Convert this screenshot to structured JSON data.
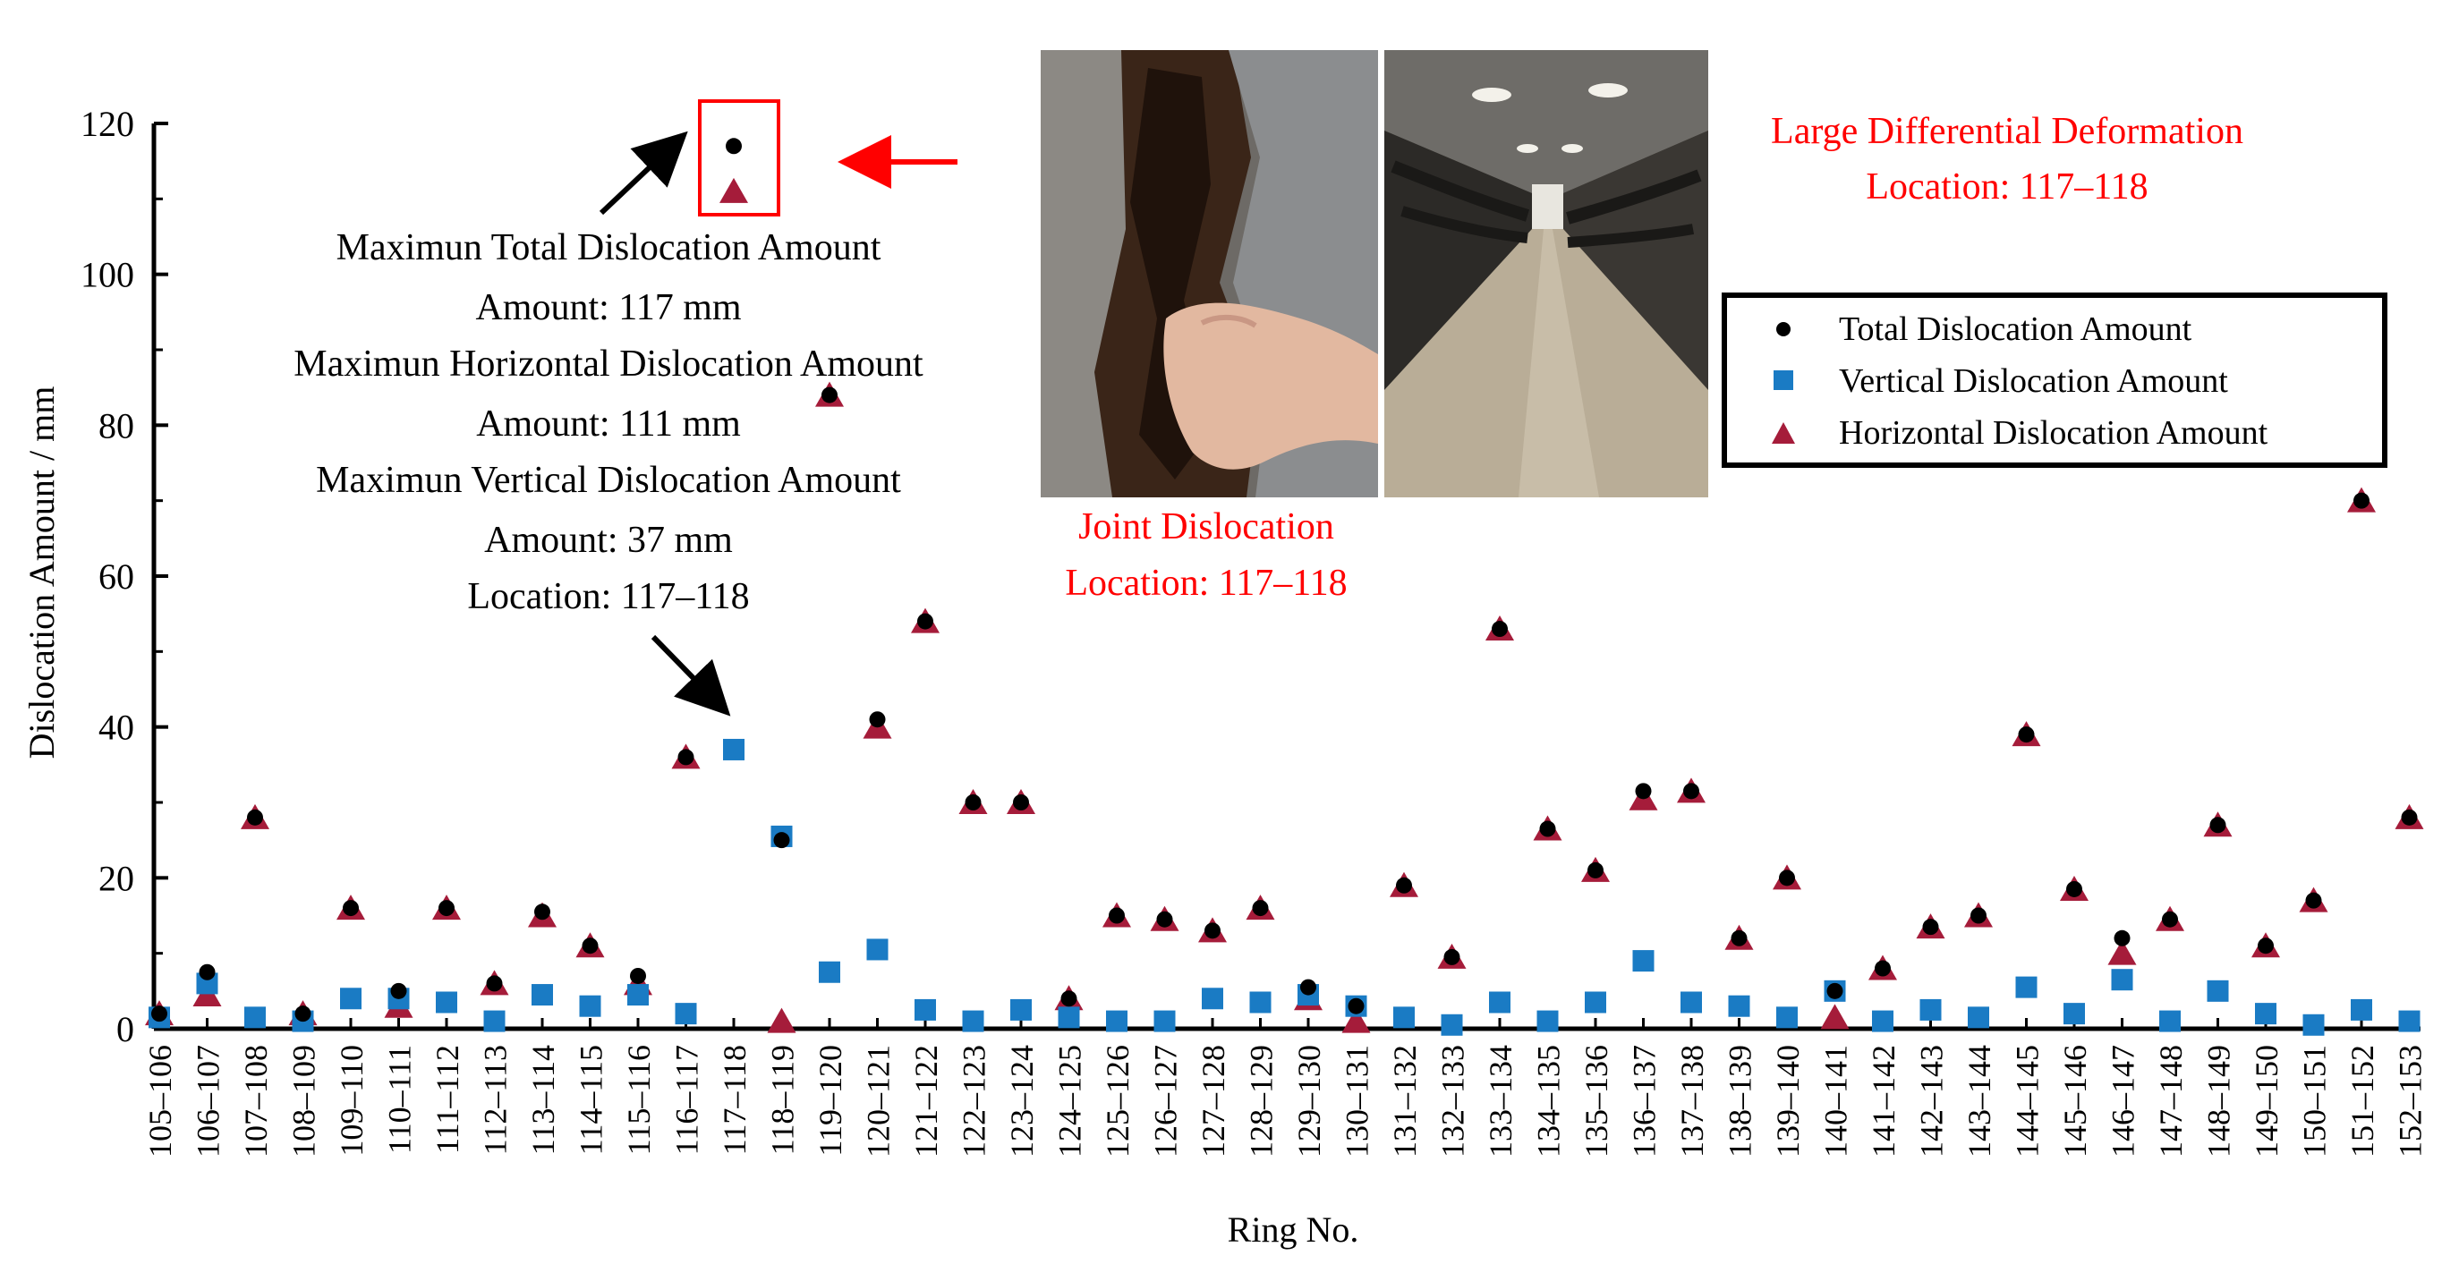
{
  "chart_data": {
    "type": "scatter",
    "xlabel": "Ring No.",
    "ylabel": "Dislocation Amount / mm",
    "ylim": [
      0,
      120
    ],
    "yticks": [
      0,
      20,
      40,
      60,
      80,
      100,
      120
    ],
    "grid": false,
    "legend_position": "top-right",
    "categories": [
      "105–106",
      "106–107",
      "107–108",
      "108–109",
      "109–110",
      "110–111",
      "111–112",
      "112–113",
      "113–114",
      "114–115",
      "115–116",
      "116–117",
      "117–118",
      "118–119",
      "119–120",
      "120–121",
      "121–122",
      "122–123",
      "123–124",
      "124–125",
      "125–126",
      "126–127",
      "127–128",
      "128–129",
      "129–130",
      "130–131",
      "131–132",
      "132–133",
      "133–134",
      "134–135",
      "135–136",
      "136–137",
      "137–138",
      "138–139",
      "139–140",
      "140–141",
      "141–142",
      "142–143",
      "143–144",
      "144–145",
      "145–146",
      "146–147",
      "147–148",
      "148–149",
      "149–150",
      "150–151",
      "151–152",
      "152–153"
    ],
    "series": [
      {
        "name": "Total Dislocation Amount",
        "marker": "circle",
        "color": "#000000",
        "values": [
          2,
          7.5,
          28,
          2,
          16,
          5,
          16,
          6,
          15.5,
          11,
          7,
          36,
          117,
          25,
          84,
          41,
          54,
          30,
          30,
          4,
          15,
          14.5,
          13,
          16,
          5.5,
          3,
          19,
          9.5,
          53,
          26.5,
          21,
          31.5,
          31.5,
          12,
          20,
          5,
          8,
          13.5,
          15,
          39,
          18.5,
          12,
          14.5,
          27,
          11,
          17,
          70,
          28
        ]
      },
      {
        "name": "Vertical Dislocation Amount",
        "marker": "square",
        "color": "#1a7bc4",
        "values": [
          1.5,
          6,
          1.5,
          1,
          4,
          4,
          3.5,
          1,
          4.5,
          3,
          4.5,
          2,
          37,
          25.5,
          7.5,
          10.5,
          2.5,
          1,
          2.5,
          1.5,
          1,
          1,
          4,
          3.5,
          4.5,
          3,
          1.5,
          0.5,
          3.5,
          1,
          3.5,
          9,
          3.5,
          3,
          1.5,
          5,
          1,
          2.5,
          1.5,
          5.5,
          2,
          6.5,
          1,
          5,
          2,
          0.5,
          2.5,
          1
        ]
      },
      {
        "name": "Horizontal Dislocation Amount",
        "marker": "triangle",
        "color": "#a51c3a",
        "values": [
          2,
          4.5,
          28,
          2,
          16,
          3,
          16,
          6,
          15,
          11,
          6,
          36,
          111,
          1,
          84,
          40,
          54,
          30,
          30,
          4,
          15,
          14.5,
          13,
          16,
          4,
          1,
          19,
          9.5,
          53,
          26.5,
          21,
          30.5,
          31.5,
          12,
          20,
          1.5,
          8,
          13.5,
          15,
          39,
          18.5,
          10,
          14.5,
          27,
          11,
          17,
          70,
          28
        ]
      }
    ]
  },
  "annotations": {
    "max_box": {
      "line1": "Maximun Total Dislocation Amount",
      "line2": "Amount: 117 mm",
      "line3": "Maximun Horizontal Dislocation Amount",
      "line4": "Amount: 111 mm",
      "line5": "Maximun Vertical Dislocation Amount",
      "line6": "Amount: 37 mm",
      "line7": "Location: 117–118"
    },
    "joint": {
      "line1": "Joint Dislocation",
      "line2": "Location: 117–118"
    },
    "deformation": {
      "line1": "Large Differential Deformation",
      "line2": "Location: 117–118"
    }
  },
  "colors": {
    "annotation_red": "#ff0000",
    "total": "#000000",
    "vertical": "#1a7bc4",
    "horizontal": "#a51c3a"
  }
}
